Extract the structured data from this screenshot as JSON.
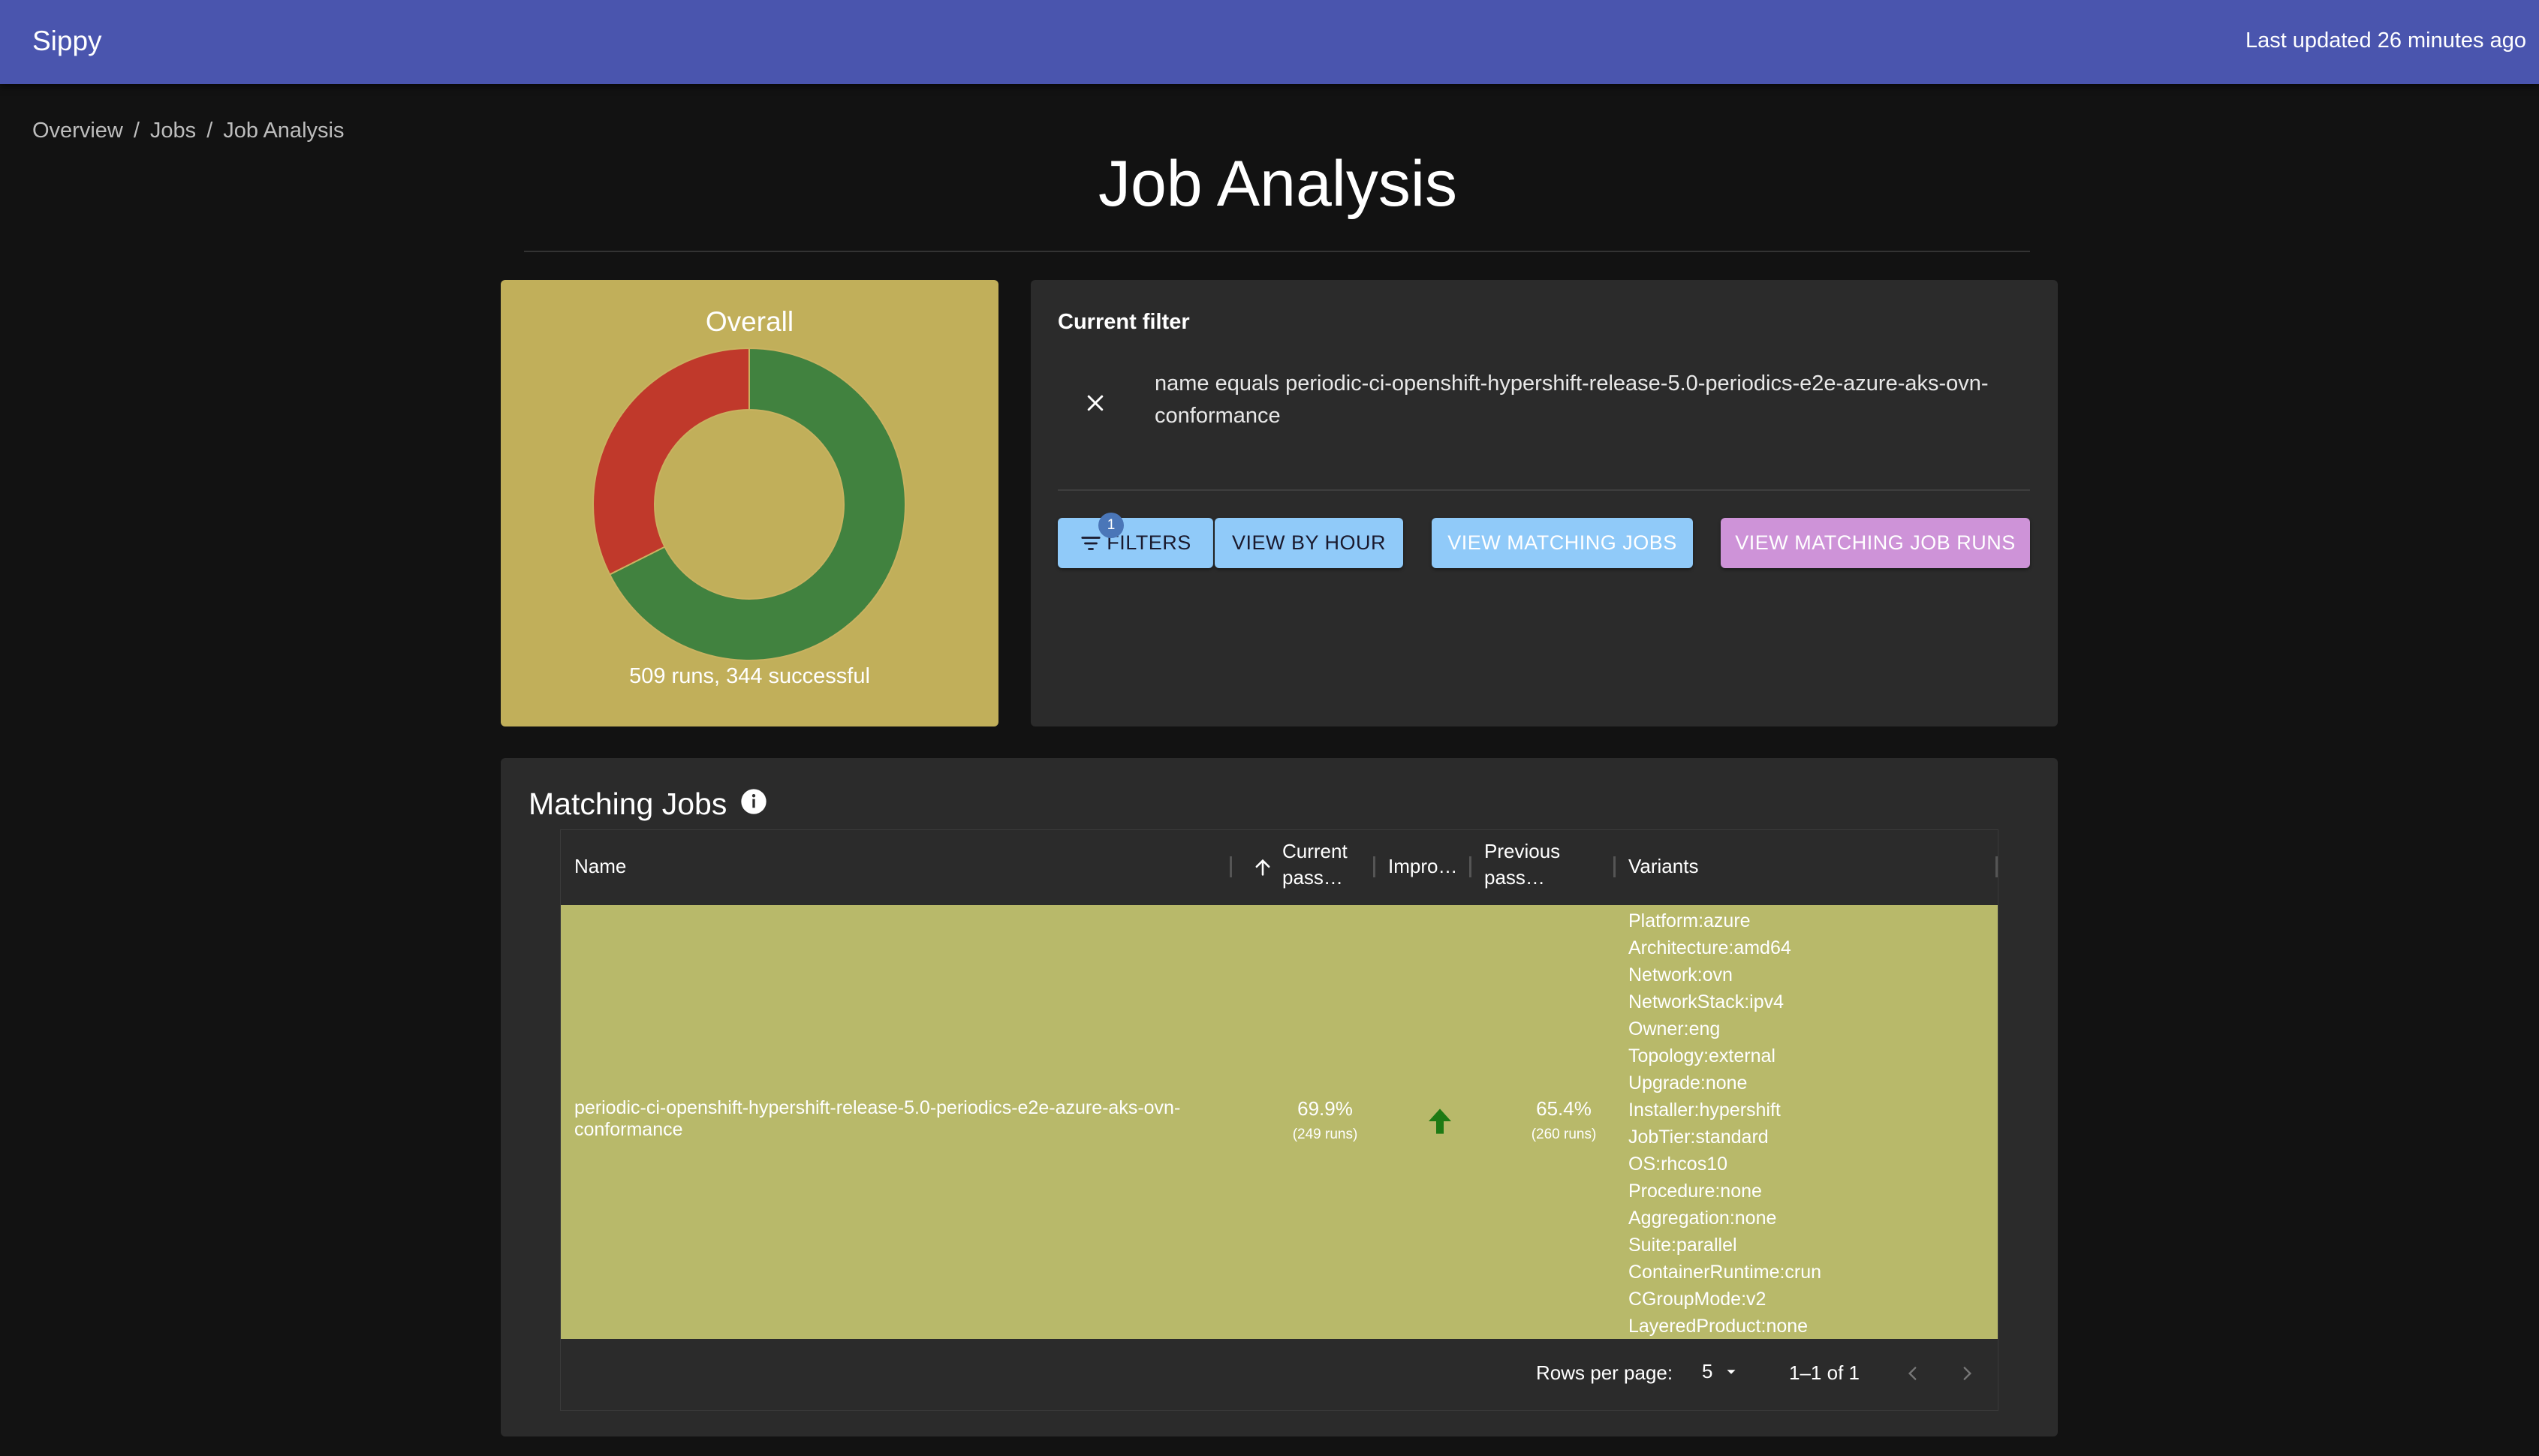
{
  "app": {
    "title": "Sippy",
    "last_updated": "Last updated 26 minutes ago"
  },
  "breadcrumb": [
    "Overview",
    "Jobs",
    "Job Analysis"
  ],
  "page": {
    "title": "Job Analysis"
  },
  "overall": {
    "title": "Overall",
    "summary": "509 runs, 344 successful",
    "runs": 509,
    "successful": 344,
    "colors": {
      "success": "#41823f",
      "failure": "#c0392b",
      "card": "#c1af5a"
    }
  },
  "filter": {
    "heading": "Current filter",
    "text": "name equals periodic-ci-openshift-hypershift-release-5.0-periodics-e2e-azure-aks-ovn-conformance",
    "buttons": {
      "filters": "Filters",
      "filters_badge": "1",
      "view_by_hour": "View by hour",
      "view_matching_jobs": "View matching jobs",
      "view_matching_job_runs": "View matching job runs"
    }
  },
  "matching_jobs": {
    "title": "Matching Jobs",
    "columns": {
      "name": "Name",
      "current_pass_line1": "Current",
      "current_pass_line2": "pass…",
      "improvement": "Impro…",
      "previous_pass_line1": "Previous",
      "previous_pass_line2": "pass…",
      "variants": "Variants"
    },
    "rows": [
      {
        "name": "periodic-ci-openshift-hypershift-release-5.0-periodics-e2e-azure-aks-ovn-conformance",
        "current_pass": "69.9%",
        "current_runs": "(249 runs)",
        "improvement_icon": "arrow-up-icon",
        "previous_pass": "65.4%",
        "previous_runs": "(260 runs)",
        "variants": [
          "Platform:azure",
          "Architecture:amd64",
          "Network:ovn",
          "NetworkStack:ipv4",
          "Owner:eng",
          "Topology:external",
          "Upgrade:none",
          "Installer:hypershift",
          "JobTier:standard",
          "OS:rhcos10",
          "Procedure:none",
          "Aggregation:none",
          "Suite:parallel",
          "ContainerRuntime:crun",
          "CGroupMode:v2",
          "LayeredProduct:none"
        ]
      }
    ],
    "pagination": {
      "rows_per_page_label": "Rows per page:",
      "rows_per_page": "5",
      "range": "1–1 of 1"
    }
  }
}
